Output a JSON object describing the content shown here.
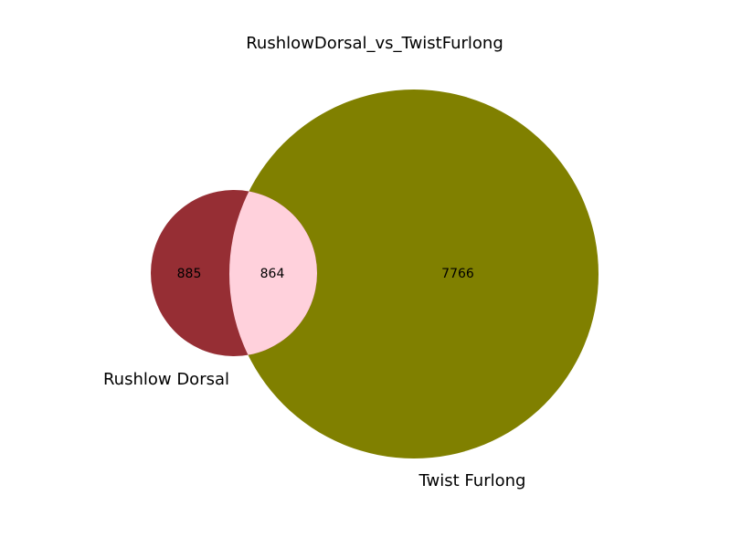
{
  "title": "RushlowDorsal_vs_TwistFurlong",
  "sets": [
    {
      "name": "Rushlow Dorsal",
      "color": "#962e34"
    },
    {
      "name": "Twist Furlong",
      "color": "#808000"
    }
  ],
  "intersection_color": "#ffd1dc",
  "counts": {
    "only_a": "885",
    "both": "864",
    "only_b": "7766"
  }
}
